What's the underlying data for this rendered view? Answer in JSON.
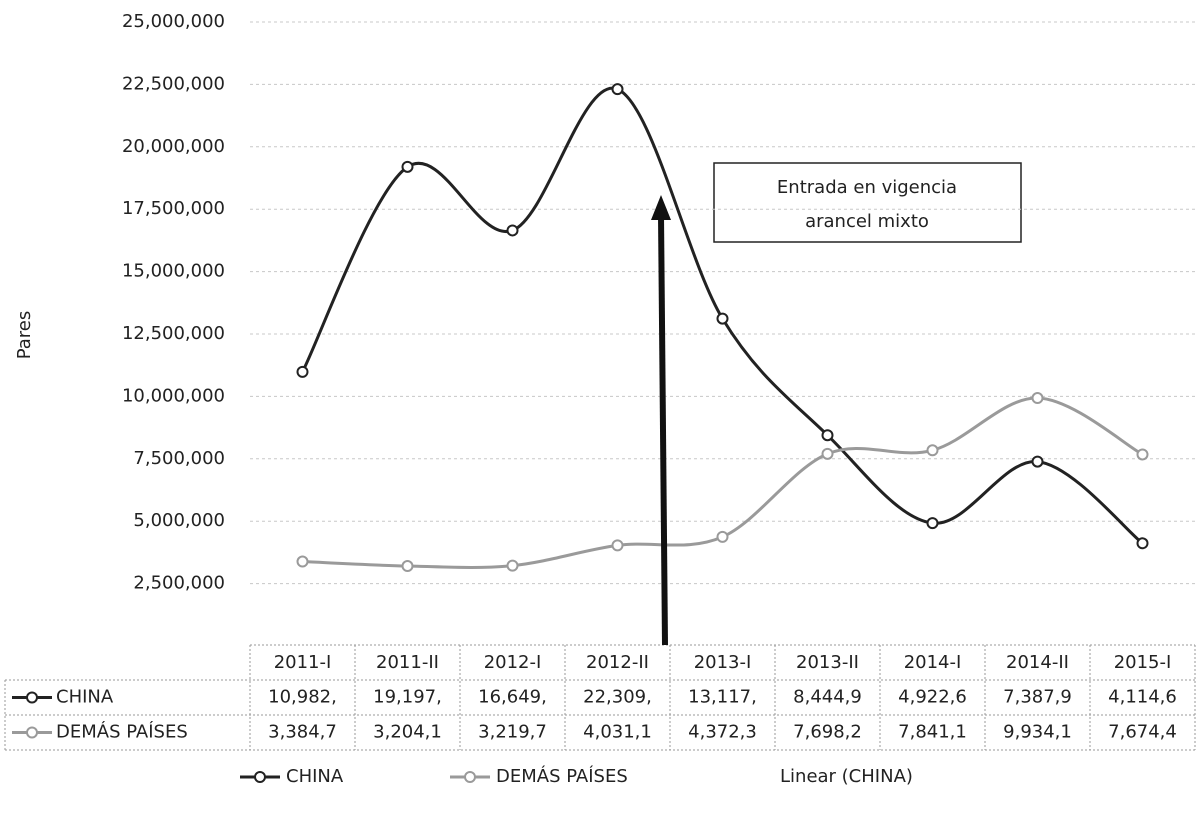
{
  "chart_data": {
    "type": "line",
    "y_label": "Pares",
    "categories": [
      "2011-I",
      "2011-II",
      "2012-I",
      "2012-II",
      "2013-I",
      "2013-II",
      "2014-I",
      "2014-II",
      "2015-I"
    ],
    "series": [
      {
        "name": "CHINA",
        "color": "#222222",
        "values": [
          10982000,
          19197000,
          16649000,
          22309000,
          13117000,
          8444900,
          4922600,
          7387900,
          4114600
        ],
        "value_labels": [
          "10,982,",
          "19,197,",
          "16,649,",
          "22,309,",
          "13,117,",
          "8,444,9",
          "4,922,6",
          "7,387,9",
          "4,114,6"
        ]
      },
      {
        "name": "DEMÁS PAÍSES",
        "color": "#9a9a9a",
        "values": [
          3384700,
          3204100,
          3219700,
          4031100,
          4372300,
          7698200,
          7841100,
          9934100,
          7674400
        ],
        "value_labels": [
          "3,384,7",
          "3,204,1",
          "3,219,7",
          "4,031,1",
          "4,372,3",
          "7,698,2",
          "7,841,1",
          "9,934,1",
          "7,674,4"
        ]
      }
    ],
    "trendline_label": "Linear (CHINA)",
    "annotation": [
      "Entrada en vigencia",
      "arancel mixto"
    ],
    "ylim": [
      0,
      25000000
    ],
    "yticks": [
      {
        "value": 2500000,
        "label": "2,500,000"
      },
      {
        "value": 5000000,
        "label": "5,000,000"
      },
      {
        "value": 7500000,
        "label": "7,500,000"
      },
      {
        "value": 10000000,
        "label": "10,000,000"
      },
      {
        "value": 12500000,
        "label": "12,500,000"
      },
      {
        "value": 15000000,
        "label": "15,000,000"
      },
      {
        "value": 17500000,
        "label": "17,500,000"
      },
      {
        "value": 20000000,
        "label": "20,000,000"
      },
      {
        "value": 22500000,
        "label": "22,500,000"
      },
      {
        "value": 25000000,
        "label": "25,000,000"
      }
    ],
    "grid": true
  }
}
